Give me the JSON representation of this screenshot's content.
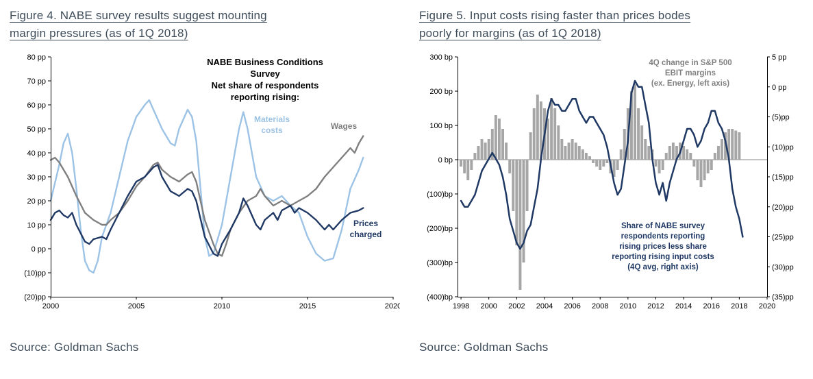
{
  "figures": [
    {
      "title": "Figure 4. NABE survey results suggest mounting\nmargin pressures (as of 1Q 2018)",
      "source": "Source: Goldman Sachs"
    },
    {
      "title": "Figure 5. Input costs rising faster than prices bodes\npoorly for margins (as of 1Q 2018)",
      "source": "Source: Goldman Sachs"
    }
  ],
  "colors": {
    "navy": "#1f3864",
    "light_blue": "#9cc3e6",
    "gray_line": "#7f7f7f",
    "bar_gray": "#a6a6a6",
    "zero_line": "#8a8a8a",
    "title_text": "#3e4c59",
    "axis": "#000000"
  },
  "chart_data": [
    {
      "type": "line",
      "title": "NABE survey results suggest mounting margin pressures (as of 1Q 2018)",
      "xlabel": "",
      "ylabel": "pp",
      "grid": false,
      "legend": "inline-annotations",
      "xlim": [
        2000,
        2020
      ],
      "ylim_left": [
        -20,
        80
      ],
      "x_ticks": {
        "values": [
          2000,
          2005,
          2010,
          2015,
          2020
        ],
        "labels": [
          "2000",
          "2005",
          "2010",
          "2015",
          "2020"
        ]
      },
      "y_ticks_left": {
        "values": [
          80,
          70,
          60,
          50,
          40,
          30,
          20,
          10,
          0,
          -10,
          -20
        ],
        "labels": [
          "80 pp",
          "70 pp",
          "60 pp",
          "50 pp",
          "40 pp",
          "30 pp",
          "20 pp",
          "10 pp",
          "0 pp",
          "(10)pp",
          "(20)pp"
        ]
      },
      "annotations": {
        "header": "NABE Business Conditions Survey\nNet share of respondents\nreporting rising:",
        "materials": "Materials\ncosts",
        "wages": "Wages",
        "prices": "Prices\ncharged"
      },
      "series": [
        {
          "id": "materials-costs",
          "name": "Materials costs",
          "color": "#9cc3e6",
          "width": 2.4,
          "x": [
            2000,
            2000.5,
            2000.75,
            2001,
            2001.25,
            2001.5,
            2001.75,
            2002,
            2002.25,
            2002.5,
            2002.75,
            2003,
            2003.5,
            2004,
            2004.5,
            2005,
            2005.5,
            2005.75,
            2006,
            2006.5,
            2007,
            2007.25,
            2007.5,
            2008,
            2008.25,
            2008.5,
            2008.75,
            2009,
            2009.25,
            2009.5,
            2010,
            2010.5,
            2011,
            2011.25,
            2011.5,
            2012,
            2012.5,
            2013,
            2013.5,
            2014,
            2014.5,
            2015,
            2015.5,
            2016,
            2016.5,
            2017,
            2017.5,
            2018,
            2018.25
          ],
          "values": [
            20,
            35,
            44,
            48,
            40,
            25,
            8,
            -5,
            -9,
            -10,
            -5,
            5,
            15,
            30,
            45,
            55,
            60,
            62,
            58,
            50,
            44,
            43,
            50,
            58,
            55,
            45,
            25,
            5,
            -3,
            -2,
            10,
            30,
            50,
            57,
            50,
            30,
            22,
            20,
            22,
            18,
            15,
            5,
            -2,
            -5,
            -4,
            8,
            25,
            33,
            38
          ]
        },
        {
          "id": "wages",
          "name": "Wages",
          "color": "#7f7f7f",
          "width": 2.4,
          "x": [
            2000,
            2000.25,
            2000.5,
            2001,
            2001.5,
            2002,
            2002.5,
            2003,
            2003.25,
            2003.5,
            2004,
            2004.5,
            2005,
            2005.5,
            2006,
            2006.25,
            2006.5,
            2007,
            2007.5,
            2008,
            2008.25,
            2008.5,
            2009,
            2009.5,
            2009.75,
            2010,
            2010.25,
            2010.5,
            2011,
            2011.5,
            2012,
            2012.25,
            2012.5,
            2013,
            2013.5,
            2014,
            2014.5,
            2015,
            2015.5,
            2016,
            2016.5,
            2017,
            2017.25,
            2017.5,
            2017.75,
            2018,
            2018.25
          ],
          "values": [
            37,
            38,
            36,
            30,
            22,
            15,
            12,
            10,
            10,
            12,
            15,
            20,
            26,
            30,
            35,
            36,
            33,
            30,
            28,
            31,
            32,
            28,
            12,
            2,
            -2,
            -3,
            2,
            8,
            15,
            20,
            22,
            25,
            22,
            18,
            20,
            18,
            20,
            22,
            25,
            30,
            34,
            38,
            40,
            42,
            40,
            44,
            47
          ]
        },
        {
          "id": "prices-charged",
          "name": "Prices charged",
          "color": "#1f3864",
          "width": 2.4,
          "x": [
            2000,
            2000.25,
            2000.5,
            2000.75,
            2001,
            2001.25,
            2001.5,
            2002,
            2002.25,
            2002.5,
            2003,
            2003.25,
            2003.5,
            2004,
            2004.5,
            2005,
            2005.5,
            2006,
            2006.25,
            2006.5,
            2007,
            2007.5,
            2008,
            2008.25,
            2008.5,
            2009,
            2009.5,
            2009.75,
            2010,
            2010.5,
            2011,
            2011.25,
            2011.5,
            2012,
            2012.25,
            2012.5,
            2013,
            2013.25,
            2013.5,
            2014,
            2014.25,
            2014.5,
            2015,
            2015.5,
            2016,
            2016.25,
            2016.5,
            2017,
            2017.5,
            2018,
            2018.25
          ],
          "values": [
            12,
            15,
            16,
            14,
            13,
            15,
            10,
            3,
            2,
            4,
            5,
            4,
            8,
            15,
            22,
            28,
            30,
            34,
            35,
            30,
            24,
            22,
            25,
            24,
            20,
            5,
            -2,
            -3,
            2,
            8,
            15,
            21,
            18,
            10,
            8,
            12,
            15,
            12,
            16,
            18,
            15,
            17,
            15,
            12,
            8,
            10,
            8,
            12,
            15,
            16,
            17
          ]
        }
      ]
    },
    {
      "type": "bar+line",
      "title": "Input costs rising faster than prices bodes poorly for margins (as of 1Q 2018)",
      "xlabel": "",
      "ylabel_left": "bp",
      "ylabel_right": "pp",
      "grid": false,
      "legend": "inline-annotations",
      "zero_line": true,
      "xlim": [
        1997.75,
        2020
      ],
      "ylim_left": [
        -400,
        300
      ],
      "ylim_right": [
        -35,
        5
      ],
      "x_ticks": {
        "values": [
          1998,
          2000,
          2002,
          2004,
          2006,
          2008,
          2010,
          2012,
          2014,
          2016,
          2018,
          2020
        ],
        "labels": [
          "1998",
          "2000",
          "2002",
          "2004",
          "2006",
          "2008",
          "2010",
          "2012",
          "2014",
          "2016",
          "2018",
          "2020"
        ]
      },
      "y_ticks_left": {
        "values": [
          300,
          200,
          100,
          0,
          -100,
          -200,
          -300,
          -400
        ],
        "labels": [
          "300 bp",
          "200 bp",
          "100 bp",
          "0 bp",
          "(100)bp",
          "(200)bp",
          "(300)bp",
          "(400)bp"
        ]
      },
      "y_ticks_right": {
        "values": [
          5,
          0,
          -5,
          -10,
          -15,
          -20,
          -25,
          -30,
          -35
        ],
        "labels": [
          "5 pp",
          "0 pp",
          "(5)pp",
          "(10)pp",
          "(15)pp",
          "(20)pp",
          "(25)pp",
          "(30)pp",
          "(35)pp"
        ]
      },
      "annotations": {
        "bars": "4Q change in S&P 500\nEBIT margins\n(ex. Energy, left axis)",
        "line": "Share of NABE survey\nrespondents reporting\nrising prices less share\nreporting rising input costs\n(4Q avg, right axis)"
      },
      "bars": {
        "id": "ebit-margin-change",
        "name": "4Q change in S&P 500 EBIT margins (ex. Energy, left axis)",
        "axis": "left",
        "color": "#a6a6a6",
        "x_start": 1998,
        "x_step": 0.25,
        "values": [
          -20,
          -40,
          -60,
          -30,
          20,
          40,
          60,
          50,
          60,
          90,
          130,
          120,
          90,
          50,
          -40,
          -150,
          -250,
          -380,
          -300,
          -150,
          80,
          150,
          190,
          170,
          150,
          120,
          180,
          150,
          100,
          60,
          40,
          50,
          60,
          50,
          40,
          30,
          20,
          10,
          -10,
          -20,
          -30,
          -20,
          -10,
          -40,
          -50,
          -30,
          30,
          90,
          150,
          200,
          220,
          150,
          100,
          60,
          40,
          30,
          -20,
          -40,
          -30,
          20,
          40,
          50,
          40,
          50,
          40,
          30,
          20,
          -20,
          -60,
          -80,
          -60,
          -40,
          -30,
          20,
          40,
          60,
          80,
          90,
          90,
          85,
          80
        ]
      },
      "series": [
        {
          "id": "nabe-prices-less-input-costs",
          "name": "Share of NABE survey respondents reporting rising prices less share reporting rising input costs (4Q avg, right axis)",
          "axis": "right",
          "color": "#1f3864",
          "width": 2.5,
          "x_start": 1998,
          "x_step": 0.25,
          "values": [
            -19,
            -20,
            -20,
            -19,
            -18,
            -16,
            -14,
            -13,
            -12,
            -11,
            -12,
            -13,
            -15,
            -18,
            -22,
            -24,
            -26,
            -27,
            -26,
            -24,
            -23,
            -20,
            -17,
            -12,
            -8,
            -4,
            -2,
            -3,
            -3,
            -4,
            -4,
            -3,
            -2,
            -2,
            -4,
            -5,
            -6,
            -5,
            -5,
            -6,
            -7,
            -8,
            -10,
            -13,
            -16,
            -18,
            -17,
            -13,
            -9,
            -1,
            1,
            0,
            0,
            -3,
            -6,
            -12,
            -16,
            -18,
            -16,
            -19,
            -16,
            -14,
            -12,
            -11,
            -9,
            -7,
            -7,
            -8,
            -10,
            -9,
            -7,
            -6,
            -4,
            -4,
            -6,
            -7,
            -9,
            -12,
            -17,
            -20,
            -22,
            -25
          ]
        }
      ]
    }
  ]
}
